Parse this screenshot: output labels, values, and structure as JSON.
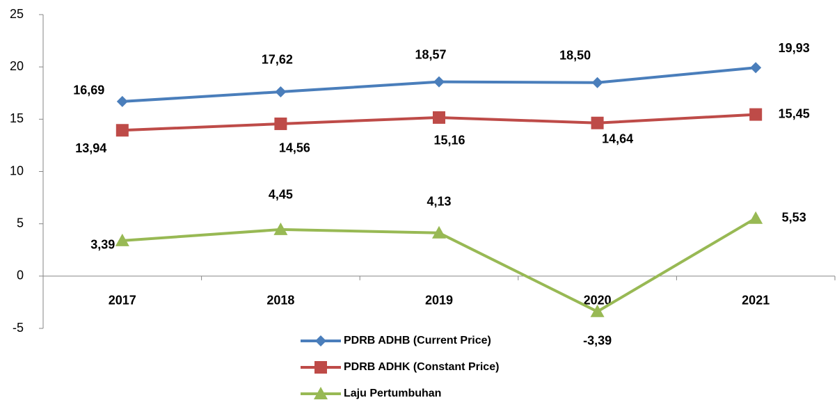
{
  "chart_data": {
    "type": "line",
    "categories": [
      "2017",
      "2018",
      "2019",
      "2020",
      "2021"
    ],
    "series": [
      {
        "name": "PDRB ADHB (Current Price)",
        "color": "#4a7ebb",
        "marker": "diamond",
        "values": [
          16.69,
          17.62,
          18.57,
          18.5,
          19.93
        ],
        "value_labels": [
          "16,69",
          "17,62",
          "18,57",
          "18,50",
          "19,93"
        ]
      },
      {
        "name": "PDRB ADHK (Constant Price)",
        "color": "#be4b48",
        "marker": "square",
        "values": [
          13.94,
          14.56,
          15.16,
          14.64,
          15.45
        ],
        "value_labels": [
          "13,94",
          "14,56",
          "15,16",
          "14,64",
          "15,45"
        ]
      },
      {
        "name": "Laju Pertumbuhan",
        "color": "#98b954",
        "marker": "triangle",
        "values": [
          3.39,
          4.45,
          4.13,
          -3.39,
          5.53
        ],
        "value_labels": [
          "3,39",
          "4,45",
          "4,13",
          "-3,39",
          "5,53"
        ]
      }
    ],
    "ylim": [
      -5,
      25
    ],
    "yticks": [
      -5,
      0,
      5,
      10,
      15,
      20,
      25
    ],
    "grid": false,
    "legend": "bottom"
  }
}
